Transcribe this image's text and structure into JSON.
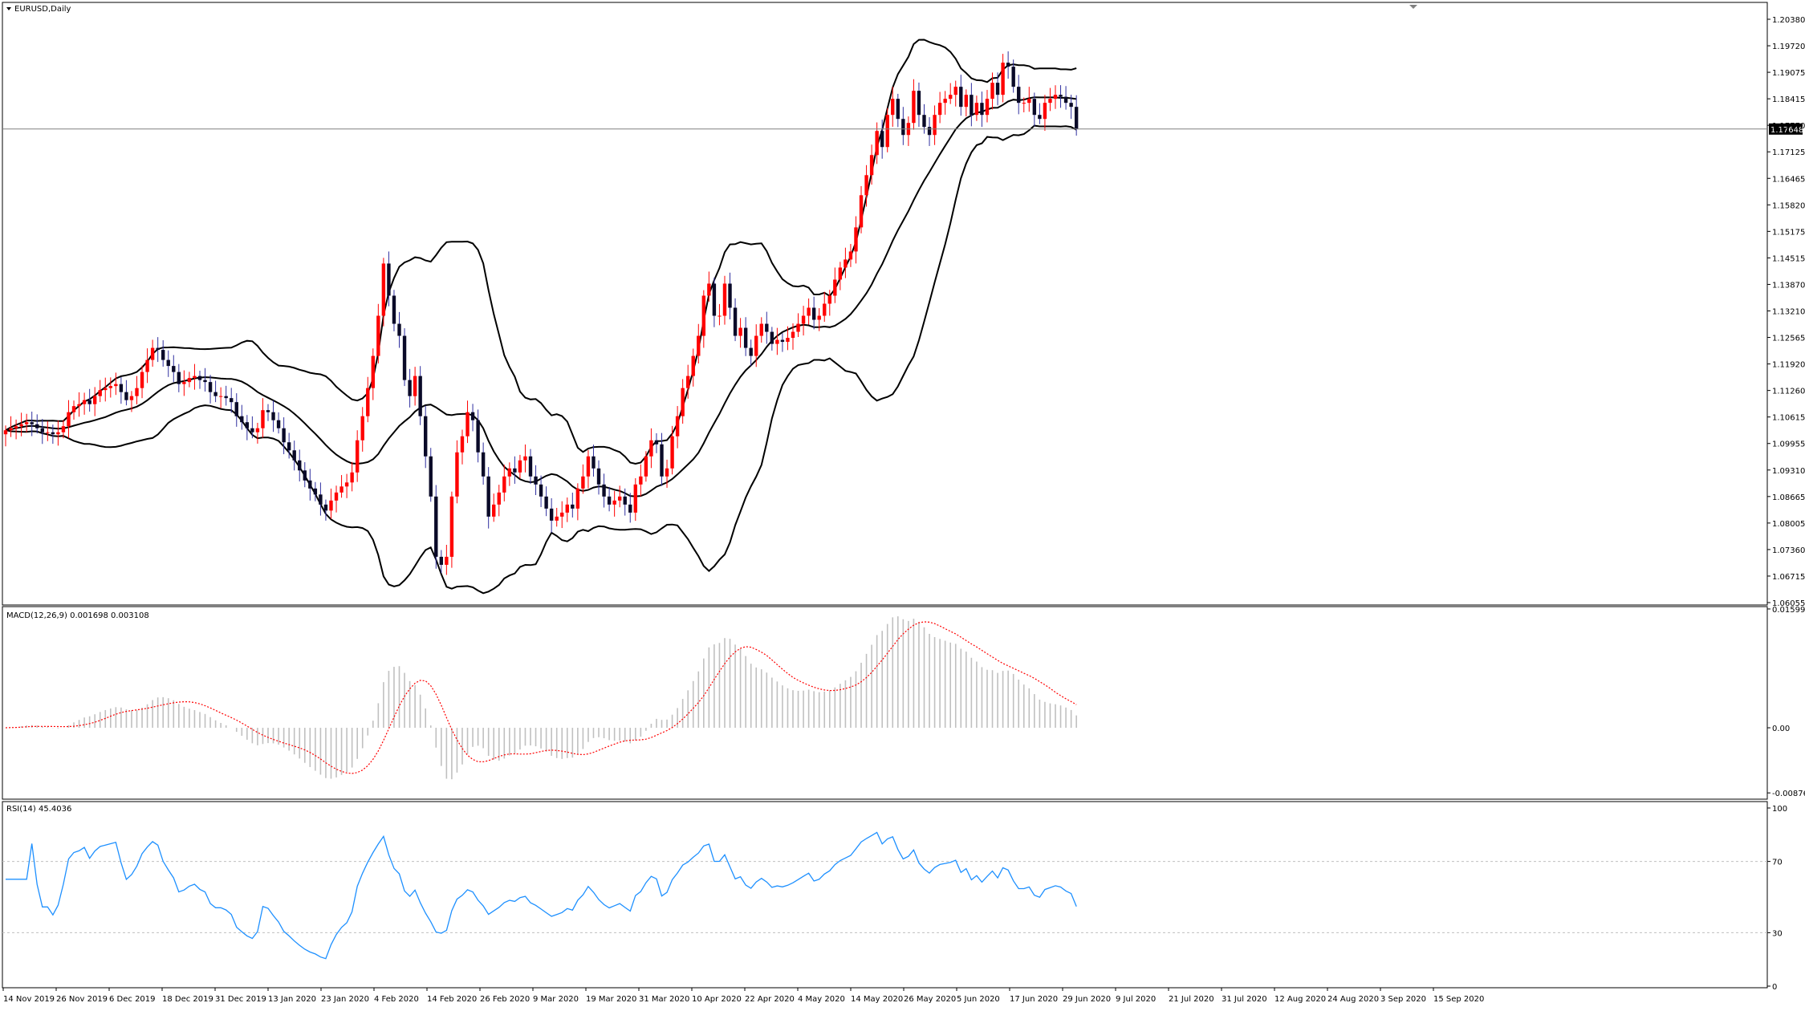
{
  "chart_data": {
    "type": "candlestick",
    "main": {
      "title": "EURUSD,Daily",
      "y_ticks": [
        "1.20380",
        "1.19720",
        "1.19075",
        "1.18415",
        "1.17770",
        "1.17125",
        "1.16465",
        "1.15820",
        "1.15175",
        "1.14515",
        "1.13870",
        "1.13210",
        "1.12565",
        "1.11920",
        "1.11260",
        "1.10615",
        "1.09955",
        "1.09310",
        "1.08665",
        "1.08005",
        "1.07360",
        "1.06715",
        "1.06055"
      ],
      "ylim": [
        1.058,
        1.208
      ],
      "current_price": 1.17648,
      "current_price_label": "1.17648",
      "colors": {
        "bull": "#ff0000",
        "bear": "#0a0a28",
        "bands": "#000000",
        "price_line": "#808080"
      }
    },
    "macd": {
      "label": "MACD(12,26,9) 0.001698 0.003108",
      "y_ticks": [
        "0.01599",
        "0.00",
        "-0.008763"
      ],
      "ylim": [
        -0.0095,
        0.0162
      ],
      "colors": {
        "histogram": "#c0c0c0",
        "signal": "#ff0000"
      }
    },
    "rsi": {
      "label": "RSI(14) 45.4036",
      "y_ticks": [
        "100",
        "70",
        "30",
        "0"
      ],
      "levels": [
        70,
        30
      ],
      "ylim": [
        0,
        100
      ],
      "colors": {
        "line": "#1e90ff",
        "levels": "#c0c0c0"
      }
    },
    "x_tick_labels": [
      "14 Nov 2019",
      "26 Nov 2019",
      "6 Dec 2019",
      "18 Dec 2019",
      "31 Dec 2019",
      "13 Jan 2020",
      "23 Jan 2020",
      "4 Feb 2020",
      "14 Feb 2020",
      "26 Feb 2020",
      "9 Mar 2020",
      "19 Mar 2020",
      "31 Mar 2020",
      "10 Apr 2020",
      "22 Apr 2020",
      "4 May 2020",
      "14 May 2020",
      "26 May 2020",
      "5 Jun 2020",
      "17 Jun 2020",
      "29 Jun 2020",
      "9 Jul 2020",
      "21 Jul 2020",
      "31 Jul 2020",
      "12 Aug 2020",
      "24 Aug 2020",
      "3 Sep 2020",
      "15 Sep 2020"
    ],
    "closes": [
      1.1015,
      1.102,
      1.1025,
      1.103,
      1.1035,
      1.103,
      1.102,
      1.101,
      1.101,
      1.1005,
      1.101,
      1.1025,
      1.106,
      1.1075,
      1.108,
      1.109,
      1.108,
      1.11,
      1.1115,
      1.112,
      1.1125,
      1.113,
      1.111,
      1.109,
      1.11,
      1.112,
      1.116,
      1.119,
      1.122,
      1.1215,
      1.119,
      1.1175,
      1.116,
      1.113,
      1.1135,
      1.1145,
      1.115,
      1.114,
      1.1135,
      1.111,
      1.11,
      1.11,
      1.1095,
      1.1085,
      1.105,
      1.1035,
      1.102,
      1.101,
      1.102,
      1.1065,
      1.106,
      1.104,
      1.102,
      1.0985,
      1.0965,
      1.094,
      1.0915,
      1.089,
      1.087,
      1.0855,
      1.083,
      1.0815,
      1.084,
      1.086,
      1.0875,
      1.0885,
      1.091,
      1.099,
      1.105,
      1.112,
      1.12,
      1.13,
      1.143,
      1.135,
      1.128,
      1.125,
      1.114,
      1.11,
      1.115,
      1.105,
      1.095,
      1.085,
      1.07,
      1.068,
      1.07,
      1.085,
      1.096,
      1.1,
      1.106,
      1.104,
      1.096,
      1.09,
      1.08,
      1.083,
      1.086,
      1.09,
      1.092,
      1.091,
      1.094,
      1.095,
      1.09,
      1.088,
      1.085,
      1.082,
      1.079,
      1.08,
      1.081,
      1.083,
      1.082,
      1.087,
      1.09,
      1.095,
      1.092,
      1.088,
      1.085,
      1.083,
      1.084,
      1.085,
      1.083,
      1.081,
      1.088,
      1.09,
      1.095,
      1.099,
      1.098,
      1.09,
      1.092,
      1.1,
      1.105,
      1.112,
      1.115,
      1.12,
      1.125,
      1.135,
      1.138,
      1.13,
      1.13,
      1.138,
      1.132,
      1.125,
      1.127,
      1.122,
      1.12,
      1.125,
      1.128,
      1.126,
      1.123,
      1.124,
      1.1235,
      1.1245,
      1.126,
      1.128,
      1.13,
      1.132,
      1.129,
      1.13,
      1.133,
      1.135,
      1.139,
      1.142,
      1.144,
      1.146,
      1.152,
      1.16,
      1.165,
      1.17,
      1.176,
      1.172,
      1.18,
      1.184,
      1.179,
      1.175,
      1.178,
      1.186,
      1.18,
      1.177,
      1.175,
      1.18,
      1.183,
      1.184,
      1.185,
      1.187,
      1.182,
      1.185,
      1.18,
      1.183,
      1.18,
      1.184,
      1.188,
      1.185,
      1.193,
      1.192,
      1.187,
      1.183,
      1.183,
      1.184,
      1.18,
      1.179,
      1.183,
      1.184,
      1.185,
      1.1845,
      1.183,
      1.182,
      1.1765
    ]
  }
}
